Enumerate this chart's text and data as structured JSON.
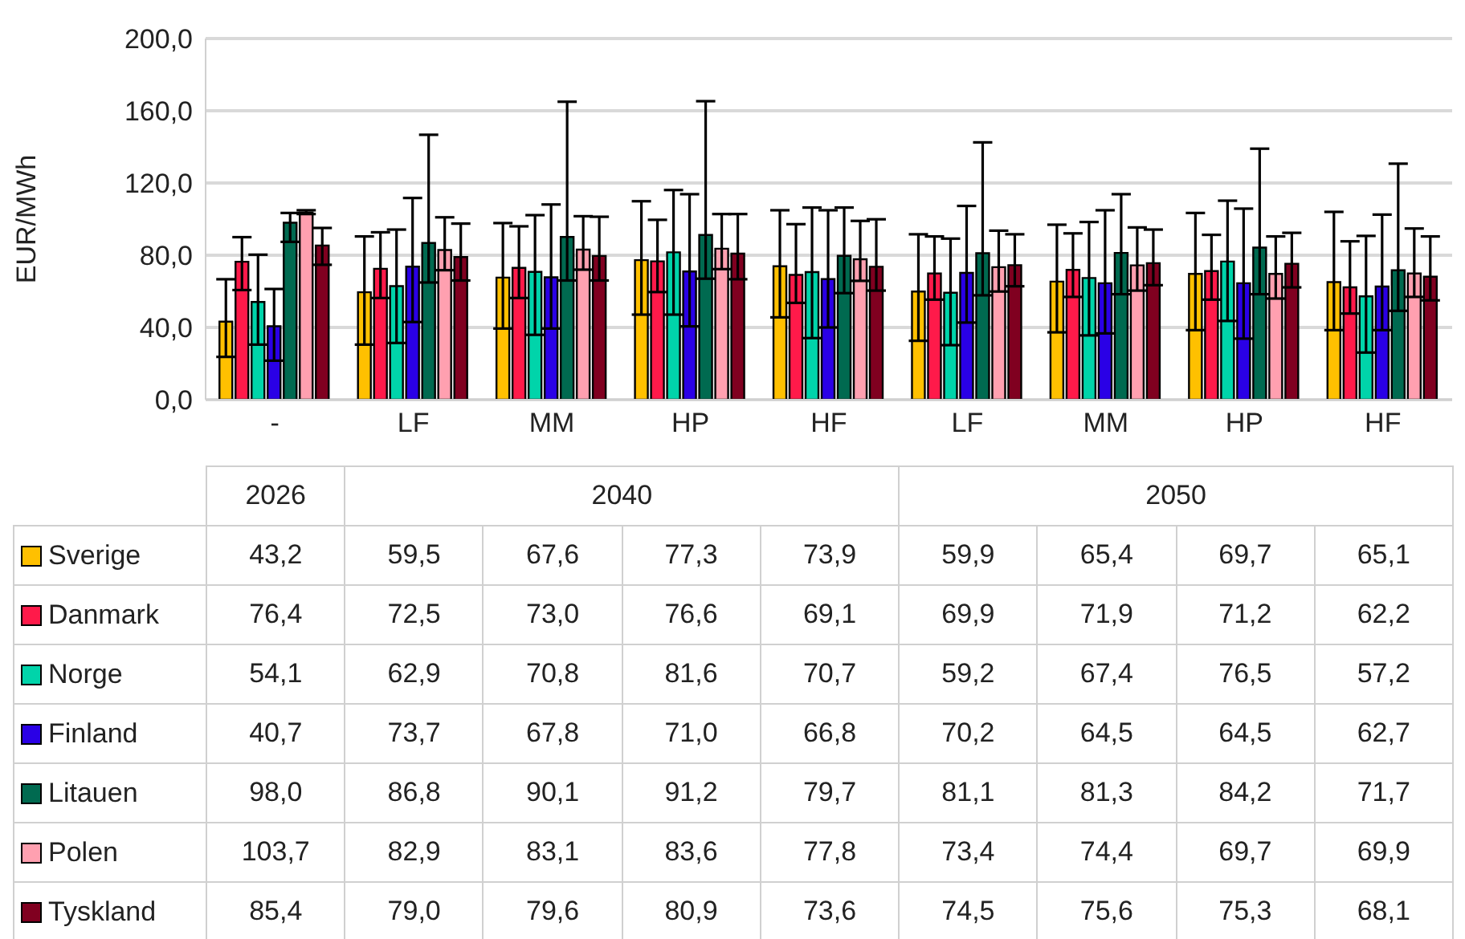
{
  "chart_data": {
    "type": "bar",
    "ylabel": "EUR/MWh",
    "categories": [
      "-",
      "LF",
      "MM",
      "HP",
      "HF",
      "LF",
      "MM",
      "HP",
      "HF"
    ],
    "annotations": [
      "2026",
      "2040",
      "2050"
    ],
    "ylim": [
      0,
      200
    ],
    "yticks": [
      {
        "value": 0,
        "label": "0,0"
      },
      {
        "value": 40,
        "label": "40,0"
      },
      {
        "value": 80,
        "label": "80,0"
      },
      {
        "value": 120,
        "label": "120,0"
      },
      {
        "value": 160,
        "label": "160,0"
      },
      {
        "value": 200,
        "label": "200,0"
      }
    ],
    "grid": "y",
    "legend": "bottom",
    "series": [
      {
        "name": "Sverige",
        "color": "#ffc000",
        "values": [
          43.2,
          59.5,
          67.6,
          77.3,
          73.9,
          59.9,
          65.4,
          69.7,
          65.1
        ],
        "value_labels": [
          "43,2",
          "59,5",
          "67,6",
          "77,3",
          "73,9",
          "59,9",
          "65,4",
          "69,7",
          "65,1"
        ],
        "errors": [
          [
            23.7,
            66.7
          ],
          [
            30.5,
            90.4
          ],
          [
            39.4,
            97.8
          ],
          [
            47.1,
            109.9
          ],
          [
            45.6,
            104.9
          ],
          [
            32.6,
            91.6
          ],
          [
            37.3,
            96.9
          ],
          [
            38.5,
            103.4
          ],
          [
            38.5,
            104
          ]
        ]
      },
      {
        "name": "Danmark",
        "color": "#ff1a4a",
        "values": [
          76.4,
          72.5,
          73.0,
          76.6,
          69.1,
          69.9,
          71.9,
          71.2,
          62.2
        ],
        "value_labels": [
          "76,4",
          "72,5",
          "73,0",
          "76,6",
          "69,1",
          "69,9",
          "71,9",
          "71,2",
          "62,2"
        ],
        "errors": [
          [
            60.7,
            90
          ],
          [
            56.3,
            92.7
          ],
          [
            56.3,
            96
          ],
          [
            59.6,
            99.6
          ],
          [
            53.6,
            97.2
          ],
          [
            55.4,
            90.4
          ],
          [
            56.9,
            92.1
          ],
          [
            55.4,
            91.3
          ],
          [
            47.7,
            87.7
          ]
        ]
      },
      {
        "name": "Norge",
        "color": "#00d4aa",
        "values": [
          54.1,
          62.9,
          70.8,
          81.6,
          70.7,
          59.2,
          67.4,
          76.5,
          57.2
        ],
        "value_labels": [
          "54,1",
          "62,9",
          "70,8",
          "81,6",
          "70,7",
          "59,2",
          "67,4",
          "76,5",
          "57,2"
        ],
        "errors": [
          [
            30.5,
            80.3
          ],
          [
            31.4,
            94.2
          ],
          [
            35.9,
            102.2
          ],
          [
            47.1,
            116.1
          ],
          [
            34.1,
            106.4
          ],
          [
            30.2,
            89.2
          ],
          [
            35.6,
            98.4
          ],
          [
            43.6,
            110.2
          ],
          [
            26.1,
            90.7
          ]
        ]
      },
      {
        "name": "Finland",
        "color": "#2a00e6",
        "values": [
          40.7,
          73.7,
          67.8,
          71.0,
          66.8,
          70.2,
          64.5,
          64.5,
          62.7
        ],
        "value_labels": [
          "40,7",
          "73,7",
          "67,8",
          "71,0",
          "66,8",
          "70,2",
          "64,5",
          "64,5",
          "62,7"
        ],
        "errors": [
          [
            21.6,
            61.3
          ],
          [
            43,
            111.7
          ],
          [
            39.4,
            108.1
          ],
          [
            40.6,
            113.8
          ],
          [
            40,
            104.9
          ],
          [
            42.7,
            107.3
          ],
          [
            36.7,
            104.9
          ],
          [
            33.8,
            105.8
          ],
          [
            38.5,
            102.5
          ]
        ]
      },
      {
        "name": "Litauen",
        "color": "#006a50",
        "values": [
          98.0,
          86.8,
          90.1,
          91.2,
          79.7,
          81.1,
          81.3,
          84.2,
          71.7
        ],
        "value_labels": [
          "98,0",
          "86,8",
          "90,1",
          "91,2",
          "79,7",
          "81,1",
          "81,3",
          "84,2",
          "71,7"
        ],
        "errors": [
          [
            87.4,
            103.4
          ],
          [
            64.9,
            146.7
          ],
          [
            66,
            165
          ],
          [
            67,
            165.3
          ],
          [
            59,
            106.4
          ],
          [
            57.8,
            142.5
          ],
          [
            58.4,
            113.8
          ],
          [
            58.4,
            139
          ],
          [
            49.2,
            130.7
          ]
        ]
      },
      {
        "name": "Polen",
        "color": "#ffa0b0",
        "values": [
          103.7,
          82.9,
          83.1,
          83.6,
          77.8,
          73.4,
          74.4,
          69.7,
          69.9
        ],
        "value_labels": [
          "103,7",
          "82,9",
          "83,1",
          "83,6",
          "77,8",
          "73,4",
          "74,4",
          "69,7",
          "69,9"
        ],
        "errors": [
          [
            102.8,
            104.9
          ],
          [
            71.7,
            101
          ],
          [
            72,
            101.6
          ],
          [
            72.3,
            102.8
          ],
          [
            65.8,
            99
          ],
          [
            59.9,
            93.6
          ],
          [
            60.4,
            95.4
          ],
          [
            56,
            90.4
          ],
          [
            56.9,
            94.8
          ]
        ]
      },
      {
        "name": "Tyskland",
        "color": "#800020",
        "values": [
          85.4,
          79.0,
          79.6,
          80.9,
          73.6,
          74.5,
          75.6,
          75.3,
          68.1
        ],
        "value_labels": [
          "85,4",
          "79,0",
          "79,6",
          "80,9",
          "73,6",
          "74,5",
          "75,6",
          "75,3",
          "68,1"
        ],
        "errors": [
          [
            74.7,
            95.1
          ],
          [
            66,
            97.5
          ],
          [
            66,
            101.3
          ],
          [
            66.7,
            102.8
          ],
          [
            60.4,
            99.9
          ],
          [
            62.8,
            91.6
          ],
          [
            63.4,
            94.2
          ],
          [
            62.2,
            92.4
          ],
          [
            55,
            90.4
          ]
        ]
      }
    ]
  }
}
